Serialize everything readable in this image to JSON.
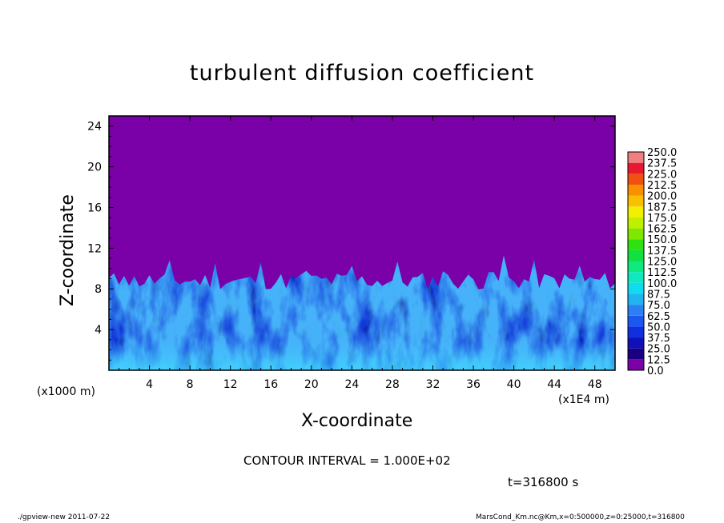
{
  "chart_data": {
    "type": "heatmap",
    "title": "turbulent diffusion coefficient",
    "xlabel": "X-coordinate",
    "ylabel": "Z-coordinate",
    "x_unit_left": "(x1000 m)",
    "x_unit_right": "(x1E4 m)",
    "xlim": [
      0,
      50
    ],
    "ylim": [
      0,
      25
    ],
    "x_ticks": [
      "4",
      "8",
      "12",
      "16",
      "20",
      "24",
      "28",
      "32",
      "36",
      "40",
      "44",
      "48"
    ],
    "y_ticks": [
      "4",
      "8",
      "12",
      "16",
      "20",
      "24"
    ],
    "colorbar_levels": [
      "0.0",
      "12.5",
      "25.0",
      "37.5",
      "50.0",
      "62.5",
      "75.0",
      "87.5",
      "100.0",
      "112.5",
      "125.0",
      "137.5",
      "150.0",
      "162.5",
      "175.0",
      "187.5",
      "200.0",
      "212.5",
      "225.0",
      "237.5",
      "250.0"
    ],
    "colorbar_colors": [
      "#7a00a8",
      "#1a0080",
      "#1010b8",
      "#1030e0",
      "#1c58f0",
      "#2c80f4",
      "#20b4f0",
      "#10dcf0",
      "#10e8c0",
      "#10e880",
      "#10e040",
      "#30e010",
      "#80e800",
      "#c0f000",
      "#f0f000",
      "#f8c000",
      "#f89000",
      "#f05010",
      "#e81830",
      "#f08080"
    ],
    "background_color": "#7a00a8",
    "turbulent_layer_top_approx": 9.5
  },
  "annotations": {
    "contour_interval": "CONTOUR INTERVAL = 1.000E+02",
    "time": "t=316800 s",
    "footer_left": "./gpview-new   2011-07-22",
    "footer_right": "MarsCond_Km.nc@Km,x=0:500000,z=0:25000,t=316800"
  }
}
